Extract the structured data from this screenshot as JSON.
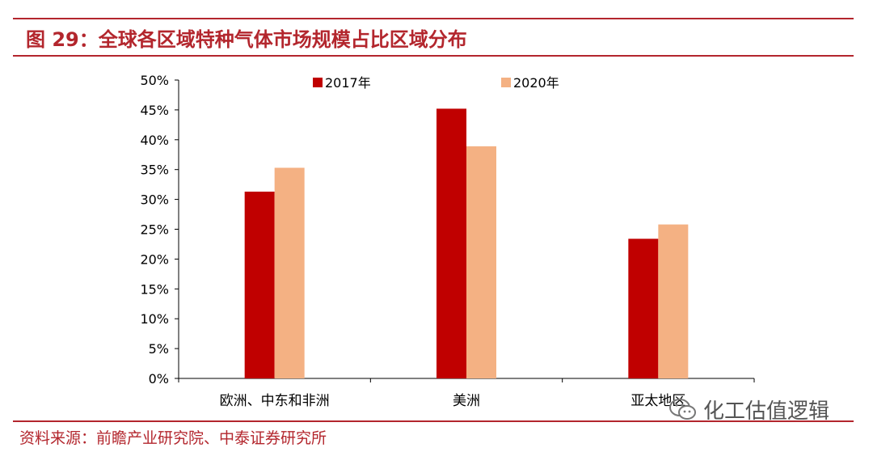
{
  "header": {
    "title": "图 29：全球各区域特种气体市场规模占比区域分布"
  },
  "footer": {
    "source": "资料来源：前瞻产业研究院、中泰证券研究所"
  },
  "watermark": {
    "text": "化工估值逻辑",
    "icon": "wechat-icon"
  },
  "colors": {
    "accent": "#b3262d",
    "series_2017": "#c00000",
    "series_2020": "#f4b183"
  },
  "chart_data": {
    "type": "bar",
    "categories": [
      "欧洲、中东和非洲",
      "美洲",
      "亚太地区"
    ],
    "series": [
      {
        "name": "2017年",
        "values": [
          31.3,
          45.2,
          23.4
        ]
      },
      {
        "name": "2020年",
        "values": [
          35.3,
          38.9,
          25.8
        ]
      }
    ],
    "yticks": [
      "0%",
      "5%",
      "10%",
      "15%",
      "20%",
      "25%",
      "30%",
      "35%",
      "40%",
      "45%",
      "50%"
    ],
    "ylim": [
      0,
      50
    ],
    "grid": false,
    "legend_position": "top"
  }
}
